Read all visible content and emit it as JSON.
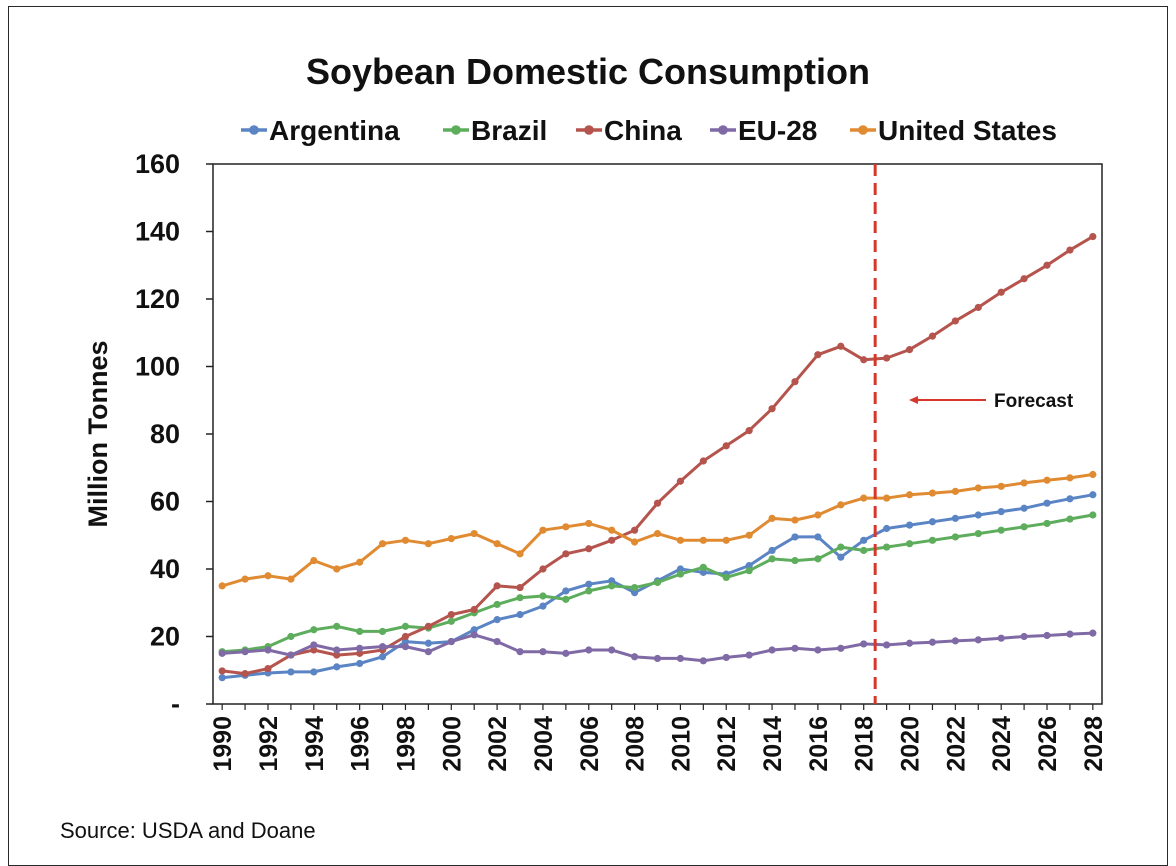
{
  "source_note": "Source: USDA and Doane",
  "chart_data": {
    "type": "line",
    "title": "Soybean Domestic Consumption",
    "ylabel": "Million Tonnes",
    "xlabel": "",
    "ylim": [
      0,
      160
    ],
    "y_ticks": [
      0,
      20,
      40,
      60,
      80,
      100,
      120,
      140,
      160
    ],
    "y_tick_labels": [
      "-",
      "20",
      "40",
      "60",
      "80",
      "100",
      "120",
      "140",
      "160"
    ],
    "x_tick_labels": [
      "1990",
      "1992",
      "1994",
      "1996",
      "1998",
      "2000",
      "2002",
      "2004",
      "2006",
      "2008",
      "2010",
      "2012",
      "2014",
      "2016",
      "2018",
      "2020",
      "2022",
      "2024",
      "2026",
      "2028"
    ],
    "x": [
      1990,
      1991,
      1992,
      1993,
      1994,
      1995,
      1996,
      1997,
      1998,
      1999,
      2000,
      2001,
      2002,
      2003,
      2004,
      2005,
      2006,
      2007,
      2008,
      2009,
      2010,
      2011,
      2012,
      2013,
      2014,
      2015,
      2016,
      2017,
      2018,
      2019,
      2020,
      2021,
      2022,
      2023,
      2024,
      2025,
      2026,
      2027,
      2028
    ],
    "grid": false,
    "legend_position": "top",
    "series": [
      {
        "name": "Argentina",
        "color": "#5b84c4",
        "values": [
          7.8,
          8.5,
          9.2,
          9.5,
          9.5,
          11.0,
          12.0,
          14.0,
          18.5,
          18.0,
          18.5,
          22.0,
          25.0,
          26.5,
          29.0,
          33.5,
          35.5,
          36.5,
          33.0,
          36.5,
          40.0,
          39.0,
          38.5,
          41.0,
          45.5,
          49.5,
          49.5,
          43.5,
          48.5,
          52.0,
          53.0,
          54.0,
          55.0,
          56.0,
          57.0,
          58.0,
          59.5,
          60.8,
          62.0
        ]
      },
      {
        "name": "Brazil",
        "color": "#5dad5d",
        "values": [
          15.5,
          16.0,
          17.0,
          20.0,
          22.0,
          23.0,
          21.5,
          21.5,
          23.0,
          22.5,
          24.5,
          27.0,
          29.5,
          31.5,
          32.0,
          31.0,
          33.5,
          35.0,
          34.5,
          36.0,
          38.5,
          40.5,
          37.5,
          39.5,
          43.0,
          42.5,
          43.0,
          46.5,
          45.5,
          46.5,
          47.5,
          48.5,
          49.5,
          50.5,
          51.5,
          52.5,
          53.5,
          54.8,
          56.0
        ]
      },
      {
        "name": "China",
        "color": "#b5544d",
        "values": [
          9.8,
          9.0,
          10.5,
          14.5,
          16.0,
          14.5,
          15.0,
          16.0,
          20.0,
          23.0,
          26.5,
          28.0,
          35.0,
          34.5,
          40.0,
          44.5,
          46.0,
          48.5,
          51.5,
          59.5,
          66.0,
          72.0,
          76.5,
          81.0,
          87.5,
          95.5,
          103.5,
          106.0,
          102.0,
          102.5,
          105.0,
          109.0,
          113.5,
          117.5,
          122.0,
          126.0,
          130.0,
          134.5,
          138.5
        ]
      },
      {
        "name": "EU-28",
        "color": "#7f6aa6",
        "values": [
          15.0,
          15.5,
          16.0,
          14.5,
          17.5,
          16.0,
          16.5,
          17.0,
          17.0,
          15.5,
          18.5,
          20.5,
          18.5,
          15.5,
          15.5,
          15.0,
          16.0,
          16.0,
          14.0,
          13.5,
          13.5,
          12.8,
          13.8,
          14.5,
          16.0,
          16.5,
          16.0,
          16.5,
          17.8,
          17.5,
          18.0,
          18.3,
          18.7,
          19.0,
          19.5,
          20.0,
          20.3,
          20.7,
          21.0
        ]
      },
      {
        "name": "United States",
        "color": "#e08a32",
        "values": [
          35.0,
          37.0,
          38.0,
          37.0,
          42.5,
          40.0,
          42.0,
          47.5,
          48.5,
          47.5,
          49.0,
          50.5,
          47.5,
          44.5,
          51.5,
          52.5,
          53.5,
          51.5,
          48.0,
          50.5,
          48.5,
          48.5,
          48.5,
          50.0,
          55.0,
          54.5,
          56.0,
          59.0,
          61.0,
          61.0,
          62.0,
          62.5,
          63.0,
          64.0,
          64.5,
          65.5,
          66.3,
          67.0,
          68.0
        ]
      }
    ],
    "forecast": {
      "x": 2018.5,
      "label": "Forecast",
      "line_color": "#d6372b"
    }
  }
}
